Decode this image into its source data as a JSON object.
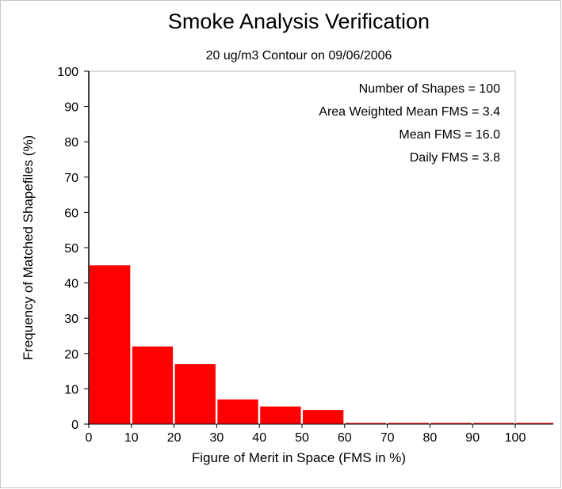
{
  "chart_data": {
    "type": "bar",
    "title": "Smoke Analysis Verification",
    "subtitle": "20 ug/m3 Contour on 09/06/2006",
    "xlabel": "Figure of Merit in Space (FMS in %)",
    "ylabel": "Frequency of Matched Shapefiles (%)",
    "xlim": [
      0,
      110
    ],
    "ylim": [
      0,
      100
    ],
    "x_ticks": [
      "0",
      "10",
      "20",
      "30",
      "40",
      "50",
      "60",
      "70",
      "80",
      "90",
      "100"
    ],
    "y_ticks": [
      "0",
      "10",
      "20",
      "30",
      "40",
      "50",
      "60",
      "70",
      "80",
      "90",
      "100"
    ],
    "bins": [
      {
        "start": 0,
        "end": 10,
        "value": 45
      },
      {
        "start": 10,
        "end": 20,
        "value": 22
      },
      {
        "start": 20,
        "end": 30,
        "value": 17
      },
      {
        "start": 30,
        "end": 40,
        "value": 7
      },
      {
        "start": 40,
        "end": 50,
        "value": 5
      },
      {
        "start": 50,
        "end": 60,
        "value": 4
      },
      {
        "start": 60,
        "end": 70,
        "value": 0
      },
      {
        "start": 70,
        "end": 80,
        "value": 0
      },
      {
        "start": 80,
        "end": 90,
        "value": 0
      },
      {
        "start": 90,
        "end": 100,
        "value": 0
      },
      {
        "start": 100,
        "end": 110,
        "value": 0
      }
    ],
    "stats": [
      "Number of Shapes = 100",
      "Area Weighted Mean FMS = 3.4",
      "Mean FMS = 16.0",
      "Daily FMS = 3.8"
    ],
    "bar_color": "#ff0000",
    "grid": false
  }
}
